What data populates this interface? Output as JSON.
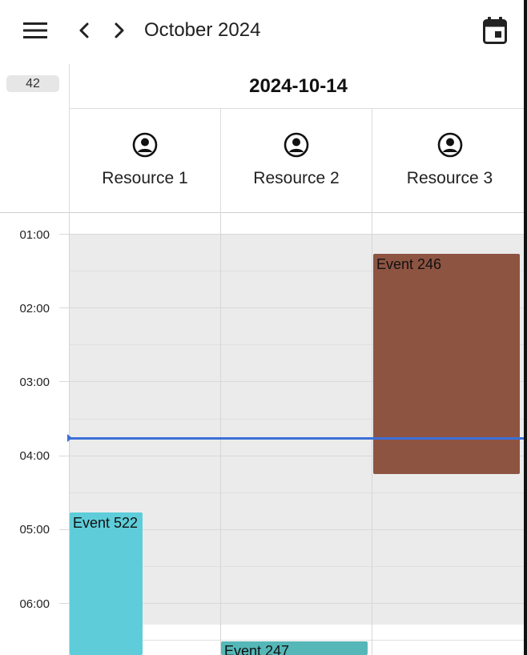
{
  "toolbar": {
    "menu_icon": "menu-icon",
    "prev_icon": "chevron-left-icon",
    "next_icon": "chevron-right-icon",
    "calendar_icon": "calendar-today-icon",
    "month_title": "October 2024"
  },
  "week_number": "42",
  "date_header": "2024-10-14",
  "resources": [
    {
      "label": "Resource 1",
      "icon": "account-circle-icon"
    },
    {
      "label": "Resource 2",
      "icon": "account-circle-icon"
    },
    {
      "label": "Resource 3",
      "icon": "account-circle-icon"
    }
  ],
  "time_labels": [
    "01:00",
    "02:00",
    "03:00",
    "04:00",
    "05:00",
    "06:00"
  ],
  "events": [
    {
      "title": "Event 246",
      "resource": "Resource 3",
      "color": "#8e5442"
    },
    {
      "title": "Event 522",
      "resource": "Resource 1",
      "color": "#5ecdd9"
    },
    {
      "title": "Event 247",
      "resource": "Resource 2",
      "color": "#55b7b8"
    }
  ],
  "now_indicator_color": "#3b6fd8"
}
